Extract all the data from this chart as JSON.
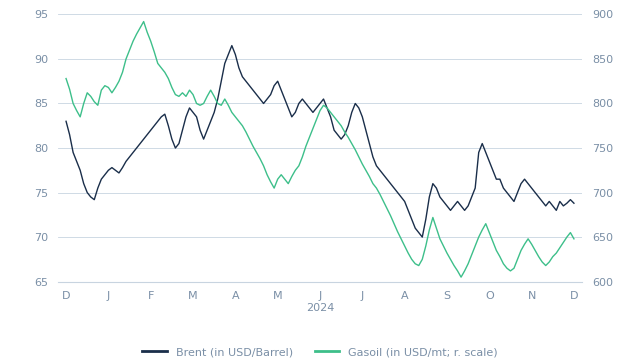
{
  "brent_color": "#1a2e4a",
  "gasoil_color": "#3dbf8a",
  "background_color": "#ffffff",
  "grid_color": "#c8d4e0",
  "label_color": "#7a8fa6",
  "left_ylim": [
    65,
    95
  ],
  "right_ylim": [
    600,
    900
  ],
  "left_yticks": [
    65,
    70,
    75,
    80,
    85,
    90,
    95
  ],
  "right_yticks": [
    600,
    650,
    700,
    750,
    800,
    850,
    900
  ],
  "xlabel": "2024",
  "legend_labels": [
    "Brent (in USD/Barrel)",
    "Gasoil (in USD/mt; r. scale)"
  ],
  "xtick_labels": [
    "D",
    "J",
    "F",
    "M",
    "A",
    "M",
    "J",
    "J",
    "A",
    "S",
    "O",
    "N",
    "D"
  ],
  "brent": [
    83.0,
    81.5,
    79.5,
    78.5,
    77.5,
    76.0,
    75.0,
    74.5,
    74.2,
    75.5,
    76.5,
    77.0,
    77.5,
    77.8,
    77.5,
    77.2,
    77.8,
    78.5,
    79.0,
    79.5,
    80.0,
    80.5,
    81.0,
    81.5,
    82.0,
    82.5,
    83.0,
    83.5,
    83.8,
    82.5,
    81.0,
    80.0,
    80.5,
    82.0,
    83.5,
    84.5,
    84.0,
    83.5,
    82.0,
    81.0,
    82.0,
    83.0,
    84.0,
    85.5,
    87.5,
    89.5,
    90.5,
    91.5,
    90.5,
    89.0,
    88.0,
    87.5,
    87.0,
    86.5,
    86.0,
    85.5,
    85.0,
    85.5,
    86.0,
    87.0,
    87.5,
    86.5,
    85.5,
    84.5,
    83.5,
    84.0,
    85.0,
    85.5,
    85.0,
    84.5,
    84.0,
    84.5,
    85.0,
    85.5,
    84.5,
    83.5,
    82.0,
    81.5,
    81.0,
    81.5,
    82.5,
    84.0,
    85.0,
    84.5,
    83.5,
    82.0,
    80.5,
    79.0,
    78.0,
    77.5,
    77.0,
    76.5,
    76.0,
    75.5,
    75.0,
    74.5,
    74.0,
    73.0,
    72.0,
    71.0,
    70.5,
    70.0,
    72.0,
    74.5,
    76.0,
    75.5,
    74.5,
    74.0,
    73.5,
    73.0,
    73.5,
    74.0,
    73.5,
    73.0,
    73.5,
    74.5,
    75.5,
    79.5,
    80.5,
    79.5,
    78.5,
    77.5,
    76.5,
    76.5,
    75.5,
    75.0,
    74.5,
    74.0,
    75.0,
    76.0,
    76.5,
    76.0,
    75.5,
    75.0,
    74.5,
    74.0,
    73.5,
    74.0,
    73.5,
    73.0,
    74.0,
    73.5,
    73.8,
    74.2,
    73.8
  ],
  "gasoil": [
    828,
    816,
    800,
    792,
    785,
    800,
    812,
    808,
    802,
    798,
    815,
    820,
    818,
    812,
    818,
    825,
    835,
    850,
    860,
    870,
    878,
    885,
    892,
    880,
    870,
    858,
    845,
    840,
    835,
    828,
    818,
    810,
    808,
    812,
    808,
    815,
    810,
    800,
    798,
    800,
    808,
    815,
    808,
    800,
    798,
    805,
    798,
    790,
    785,
    780,
    775,
    768,
    760,
    752,
    745,
    738,
    730,
    720,
    712,
    705,
    715,
    720,
    715,
    710,
    718,
    725,
    730,
    740,
    752,
    762,
    772,
    782,
    792,
    798,
    795,
    790,
    785,
    780,
    775,
    768,
    762,
    755,
    748,
    740,
    732,
    725,
    718,
    710,
    705,
    698,
    690,
    682,
    674,
    665,
    656,
    648,
    640,
    632,
    625,
    620,
    618,
    625,
    640,
    658,
    672,
    660,
    648,
    640,
    632,
    625,
    618,
    612,
    605,
    612,
    620,
    630,
    640,
    650,
    658,
    665,
    655,
    645,
    635,
    628,
    620,
    615,
    612,
    615,
    625,
    635,
    642,
    648,
    642,
    635,
    628,
    622,
    618,
    622,
    628,
    632,
    638,
    644,
    650,
    655,
    648
  ]
}
